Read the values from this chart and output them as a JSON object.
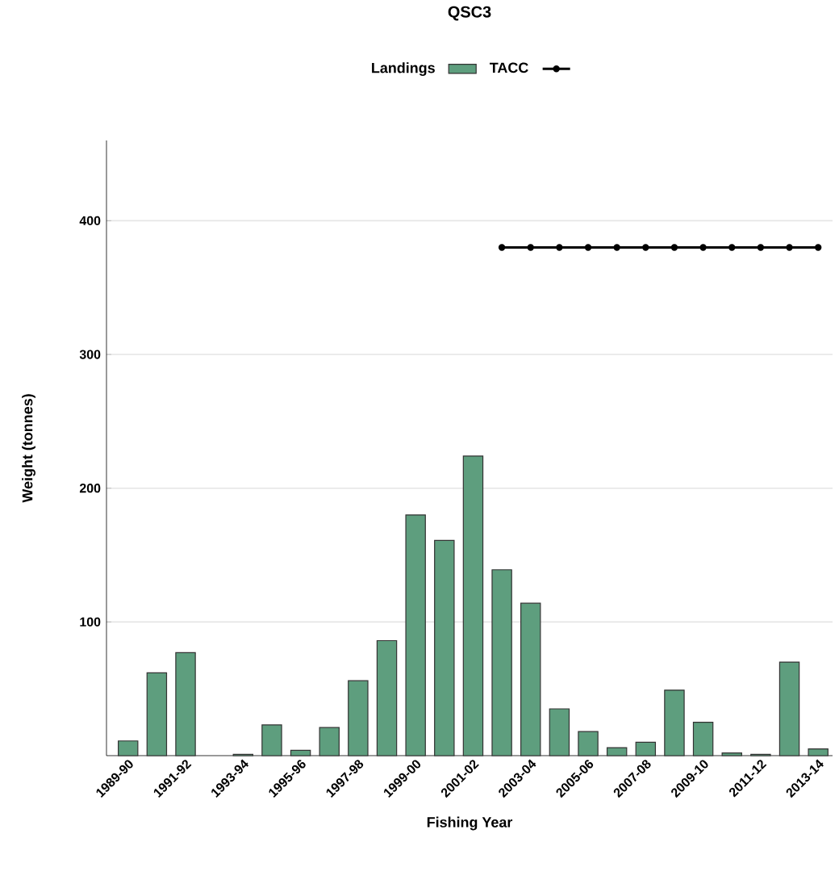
{
  "chart_data": {
    "type": "bar",
    "title": "QSC3",
    "xlabel": "Fishing Year",
    "ylabel": "Weight (tonnes)",
    "categories": [
      "1989-90",
      null,
      "1991-92",
      null,
      "1993-94",
      null,
      "1995-96",
      null,
      "1997-98",
      null,
      "1999-00",
      null,
      "2001-02",
      null,
      "2003-04",
      null,
      "2005-06",
      null,
      "2007-08",
      null,
      "2009-10",
      null,
      "2011-12",
      null,
      "2013-14"
    ],
    "series": [
      {
        "name": "Landings",
        "color": "#5e9e7e",
        "values": [
          11,
          62,
          77,
          null,
          1,
          23,
          4,
          21,
          56,
          86,
          180,
          161,
          224,
          139,
          114,
          35,
          18,
          6,
          10,
          49,
          25,
          2,
          1,
          70,
          5
        ]
      },
      {
        "name": "TACC",
        "type": "line",
        "color": "#000000",
        "marker": "circle",
        "line_style": "solid",
        "values": [
          null,
          null,
          null,
          null,
          null,
          null,
          null,
          null,
          null,
          null,
          null,
          null,
          null,
          380,
          380,
          380,
          380,
          380,
          380,
          380,
          380,
          380,
          380,
          380,
          380
        ]
      }
    ],
    "ylim": [
      0,
      460
    ],
    "yticks": [
      100,
      200,
      300,
      400
    ],
    "grid": "y",
    "legend": "top"
  }
}
